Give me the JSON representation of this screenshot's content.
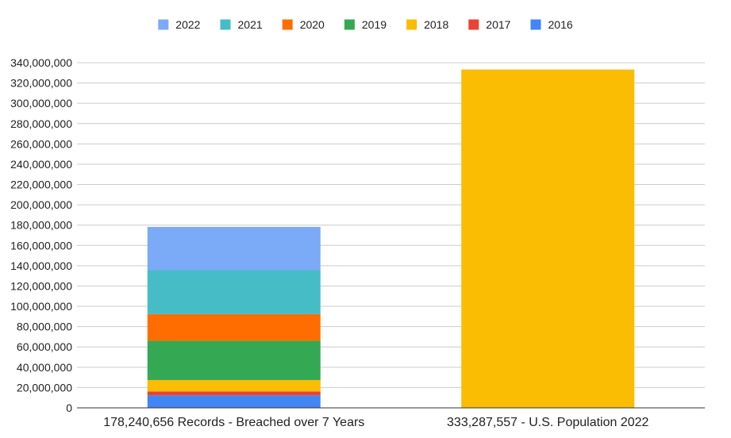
{
  "chart_data": {
    "type": "bar",
    "stacked": true,
    "categories": [
      "178,240,656 Records - Breached over 7 Years",
      "333,287,557 - U.S. Population 2022"
    ],
    "series": [
      {
        "name": "2016",
        "color": "#4285f4",
        "values": [
          12400000,
          0
        ]
      },
      {
        "name": "2017",
        "color": "#ea4335",
        "values": [
          3700000,
          0
        ]
      },
      {
        "name": "2018",
        "color": "#fbbc04",
        "values": [
          11300000,
          333287557
        ]
      },
      {
        "name": "2019",
        "color": "#34a853",
        "values": [
          38700000,
          0
        ]
      },
      {
        "name": "2020",
        "color": "#ff6d01",
        "values": [
          26200000,
          0
        ]
      },
      {
        "name": "2021",
        "color": "#46bdc6",
        "values": [
          43300000,
          0
        ]
      },
      {
        "name": "2022",
        "color": "#7baaf7",
        "values": [
          42640656,
          0
        ]
      }
    ],
    "legend_order": [
      "2022",
      "2021",
      "2020",
      "2019",
      "2018",
      "2017",
      "2016"
    ],
    "legend_position": "top",
    "ylim": [
      0,
      340000000
    ],
    "y_ticks": [
      0,
      20000000,
      40000000,
      60000000,
      80000000,
      100000000,
      120000000,
      140000000,
      160000000,
      180000000,
      200000000,
      220000000,
      240000000,
      260000000,
      280000000,
      300000000,
      320000000,
      340000000
    ],
    "y_tick_labels": [
      "0",
      "20,000,000",
      "40,000,000",
      "60,000,000",
      "80,000,000",
      "100,000,000",
      "120,000,000",
      "140,000,000",
      "160,000,000",
      "180,000,000",
      "200,000,000",
      "220,000,000",
      "240,000,000",
      "260,000,000",
      "280,000,000",
      "300,000,000",
      "320,000,000",
      "340,000,000"
    ],
    "grid": true,
    "title": "",
    "xlabel": "",
    "ylabel": ""
  }
}
